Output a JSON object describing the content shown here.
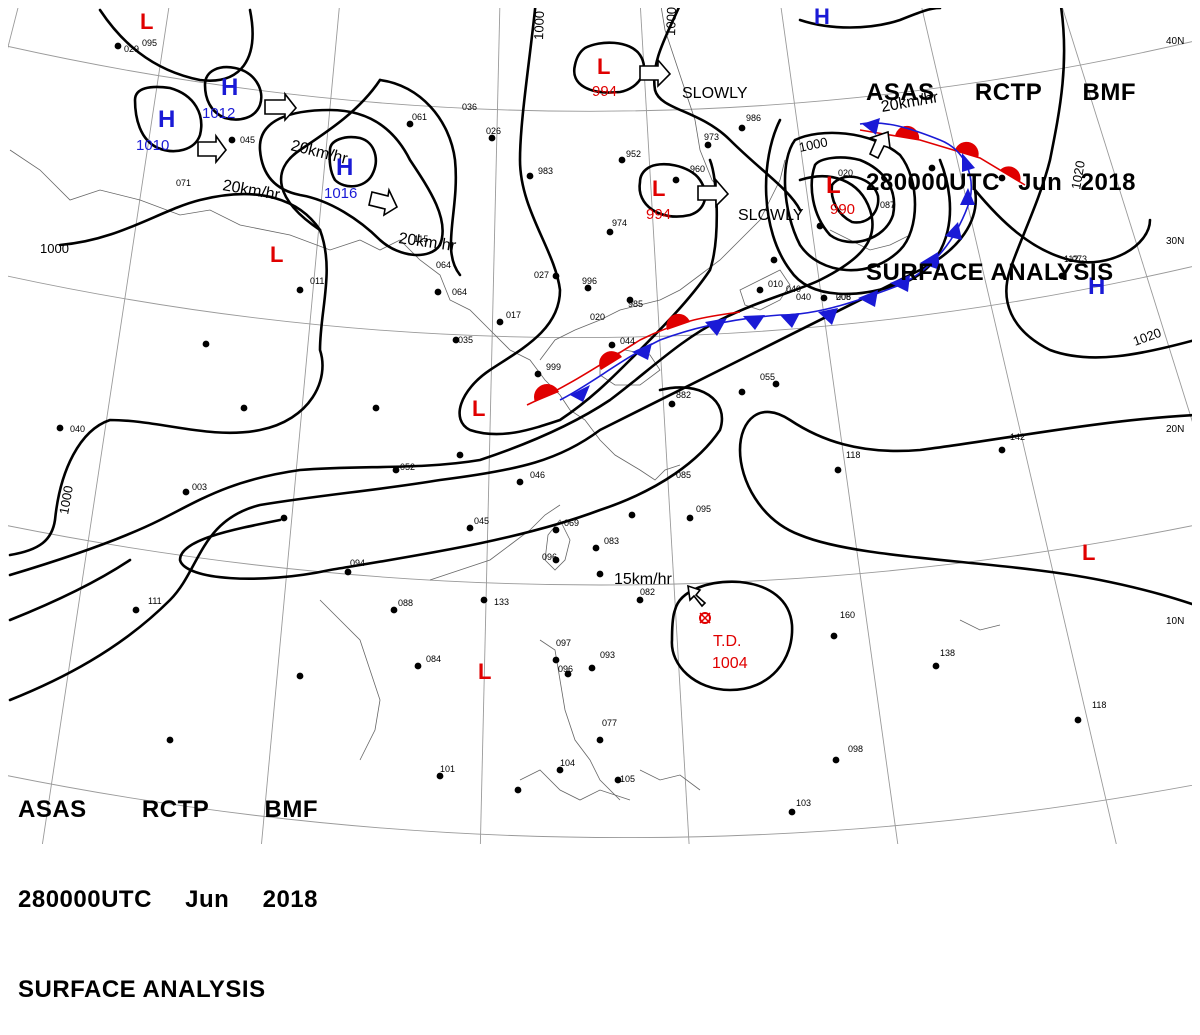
{
  "header": {
    "line1": [
      "ASAS",
      "RCTP",
      "BMF"
    ],
    "line2": [
      "280000UTC",
      "Jun",
      "2018"
    ],
    "line3": "SURFACE ANALYSIS"
  },
  "lat_labels": [
    "40N",
    "30N",
    "20N",
    "10N"
  ],
  "colors": {
    "low": "#e00000",
    "high": "#1a1ad6",
    "warm_front": "#e00000",
    "cold_front": "#1a1ad6",
    "isobar": "#000000",
    "grid": "#9a9a9a"
  },
  "pressure_centers": [
    {
      "id": "low-nw-corner",
      "type": "L",
      "value": ""
    },
    {
      "id": "high-1012",
      "type": "H",
      "value": "1012"
    },
    {
      "id": "high-1010",
      "type": "H",
      "value": "1010"
    },
    {
      "id": "high-1016",
      "type": "H",
      "value": "1016"
    },
    {
      "id": "low-994-north",
      "type": "L",
      "value": "994"
    },
    {
      "id": "low-994-korea",
      "type": "L",
      "value": "994"
    },
    {
      "id": "low-990-japan",
      "type": "L",
      "value": "990"
    },
    {
      "id": "high-top",
      "type": "H",
      "value": ""
    },
    {
      "id": "low-mongolia",
      "type": "L",
      "value": ""
    },
    {
      "id": "low-china",
      "type": "L",
      "value": ""
    },
    {
      "id": "high-east-pacific",
      "type": "H",
      "value": ""
    },
    {
      "id": "low-east",
      "type": "L",
      "value": ""
    },
    {
      "id": "low-indochina",
      "type": "L",
      "value": ""
    }
  ],
  "tropical_depression": {
    "label": "T.D.",
    "value": "1004"
  },
  "isobar_labels": [
    "1000",
    "1000",
    "1000",
    "1000",
    "1000",
    "1020",
    "1020"
  ],
  "motion_labels": [
    "20km/hr",
    "20km/hr",
    "20km/hr",
    "20km/hr",
    "SLOWLY",
    "SLOWLY",
    "15km/hr"
  ],
  "station_numbers": [
    "029",
    "045",
    "061",
    "026",
    "952",
    "973",
    "986",
    "960",
    "983",
    "974",
    "996",
    "985",
    "027",
    "064",
    "035",
    "017",
    "006",
    "040",
    "010",
    "044",
    "999",
    "882",
    "055",
    "112",
    "208",
    "040",
    "003",
    "052",
    "046",
    "045",
    "069",
    "085",
    "095",
    "094",
    "088",
    "096",
    "083",
    "082",
    "133",
    "084",
    "097",
    "093",
    "096",
    "077",
    "104",
    "105",
    "118",
    "142",
    "160",
    "138",
    "118",
    "098",
    "103",
    "101",
    "111",
    "095",
    "071",
    "011",
    "115",
    "064",
    "020",
    "036",
    "040",
    "073",
    "020",
    "087"
  ]
}
